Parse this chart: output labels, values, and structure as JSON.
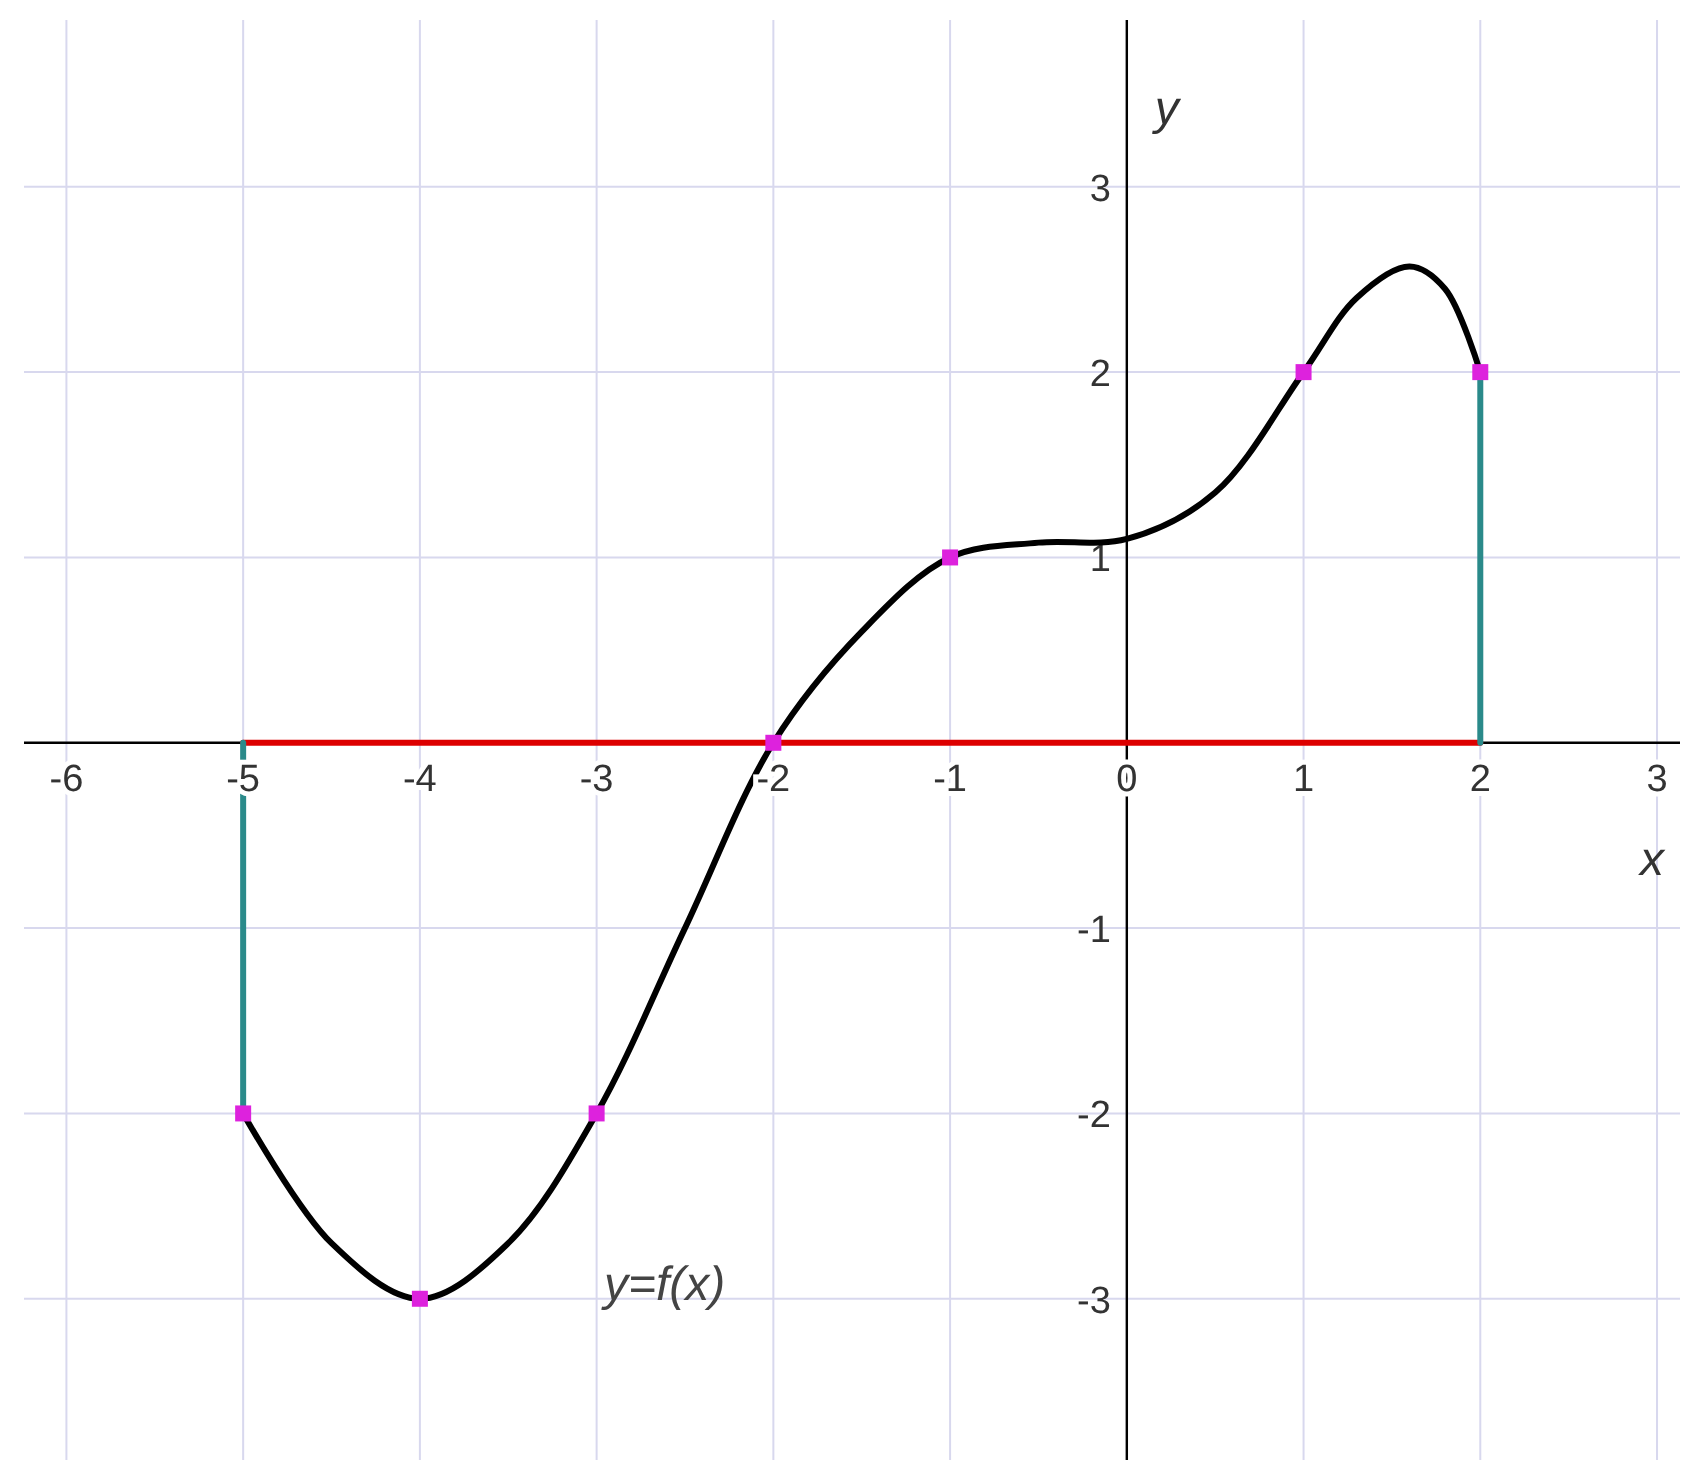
{
  "chart_data": {
    "type": "line",
    "xlabel": "x",
    "ylabel": "y",
    "xlim": [
      -6.24,
      3.13
    ],
    "ylim": [
      -3.87,
      3.9
    ],
    "xticks": [
      -6,
      -5,
      -4,
      -3,
      -2,
      -1,
      0,
      1,
      2,
      3
    ],
    "yticks": [
      -3,
      -2,
      -1,
      1,
      2,
      3
    ],
    "grid": true,
    "series": [
      {
        "color": "#dd0000",
        "x": [
          -5,
          2
        ],
        "values": [
          0,
          0
        ]
      },
      {
        "color": "#2a8a8a",
        "x": [
          -5,
          -5
        ],
        "values": [
          0,
          -2
        ]
      },
      {
        "color": "#2a8a8a",
        "x": [
          2,
          2
        ],
        "values": [
          0,
          2
        ]
      },
      {
        "color": "#000000",
        "x": [
          -5,
          -4.5,
          -4,
          -3.5,
          -3,
          -2.5,
          -2,
          -1.5,
          -1,
          -0.5,
          0,
          0.5,
          1,
          1.3,
          1.6,
          1.8,
          2
        ],
        "values": [
          -2,
          -2.7,
          -3,
          -2.7,
          -2,
          -1,
          0,
          0.6,
          1,
          1.08,
          1.1,
          1.35,
          2,
          2.4,
          2.57,
          2.45,
          2
        ]
      },
      {
        "type": "scatter",
        "color": "#dd22dd",
        "x": [
          -5,
          -4,
          -3,
          -2,
          -1,
          1,
          2
        ],
        "values": [
          -2,
          -3,
          -2,
          0,
          1,
          2,
          2
        ]
      }
    ],
    "annotations": [
      "y=f(x)"
    ]
  }
}
